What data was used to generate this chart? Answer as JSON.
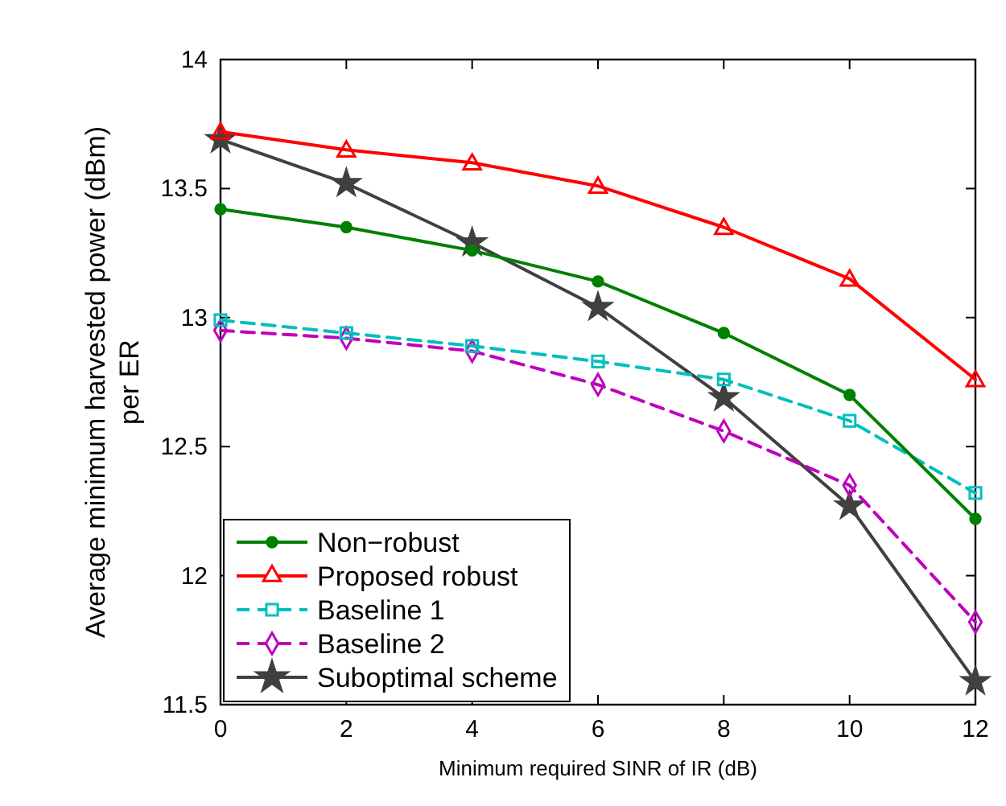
{
  "chart_data": {
    "type": "line",
    "xlabel": "Minimum required SINR of IR (dB)",
    "ylabel": "Average minimum harvested power (dBm)\nper ER",
    "x": [
      0,
      2,
      4,
      6,
      8,
      10,
      12
    ],
    "xlim": [
      0,
      12
    ],
    "xticks": [
      0,
      2,
      4,
      6,
      8,
      10,
      12
    ],
    "ylim": [
      11.5,
      14
    ],
    "yticks": [
      11.5,
      12,
      12.5,
      13,
      13.5,
      14
    ],
    "legend": "bottom left",
    "grid": false,
    "series": [
      {
        "name": "Non−robust",
        "color": "#008000",
        "marker": "circle",
        "line_style": "solid",
        "values": [
          13.42,
          13.35,
          13.26,
          13.14,
          12.94,
          12.7,
          12.22
        ]
      },
      {
        "name": "Proposed robust",
        "color": "#ff0000",
        "marker": "triangle",
        "line_style": "solid",
        "values": [
          13.72,
          13.65,
          13.6,
          13.51,
          13.35,
          13.15,
          12.76
        ]
      },
      {
        "name": "Baseline 1",
        "color": "#00bfbf",
        "marker": "square",
        "line_style": "dashed",
        "values": [
          12.99,
          12.94,
          12.89,
          12.83,
          12.76,
          12.6,
          12.32
        ]
      },
      {
        "name": "Baseline 2",
        "color": "#bf00bf",
        "marker": "diamond",
        "line_style": "dashed",
        "values": [
          12.95,
          12.92,
          12.87,
          12.74,
          12.56,
          12.35,
          11.82
        ]
      },
      {
        "name": "Suboptimal scheme",
        "color": "#404040",
        "marker": "star",
        "line_style": "solid",
        "values": [
          13.69,
          13.52,
          13.29,
          13.04,
          12.69,
          12.27,
          11.59
        ]
      }
    ]
  }
}
